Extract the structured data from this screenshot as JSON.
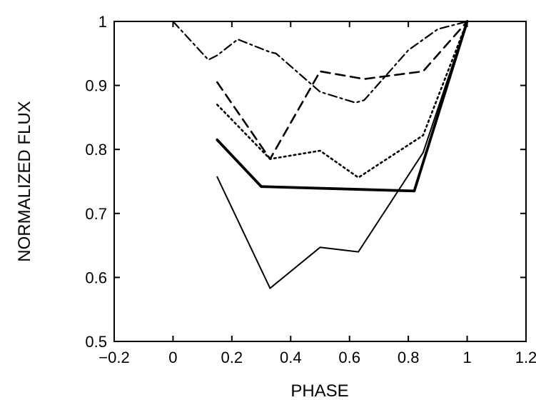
{
  "chart_data": {
    "type": "line",
    "title": "",
    "xlabel": "PHASE",
    "ylabel": "NORMALIZED FLUX",
    "xlim": [
      -0.2,
      1.2
    ],
    "ylim": [
      0.5,
      1.0
    ],
    "xticks": [
      -0.2,
      0,
      0.2,
      0.4,
      0.6,
      0.8,
      1,
      1.2
    ],
    "xtick_labels": [
      "−0.2",
      "0",
      "0.2",
      "0.4",
      "0.6",
      "0.8",
      "1",
      "1.2"
    ],
    "yticks": [
      0.5,
      0.6,
      0.7,
      0.8,
      0.9,
      1.0
    ],
    "ytick_labels": [
      "0.5",
      "0.6",
      "0.7",
      "0.8",
      "0.9",
      "1"
    ],
    "grid": false,
    "series": [
      {
        "style": "dashdot",
        "color": "#000000",
        "x": [
          0.0,
          0.12,
          0.15,
          0.22,
          0.33,
          0.35,
          0.5,
          0.62,
          0.65,
          0.8,
          0.9,
          1.0
        ],
        "y": [
          1.0,
          0.94,
          0.947,
          0.972,
          0.952,
          0.95,
          0.89,
          0.873,
          0.877,
          0.955,
          0.988,
          1.0
        ]
      },
      {
        "style": "dashed",
        "color": "#000000",
        "x": [
          0.15,
          0.33,
          0.5,
          0.65,
          0.85,
          1.0
        ],
        "y": [
          0.905,
          0.785,
          0.922,
          0.91,
          0.922,
          1.0
        ]
      },
      {
        "style": "dotted",
        "color": "#000000",
        "x": [
          0.15,
          0.33,
          0.5,
          0.63,
          0.85,
          1.0
        ],
        "y": [
          0.87,
          0.785,
          0.798,
          0.756,
          0.822,
          1.0
        ]
      },
      {
        "style": "solid-thick",
        "color": "#000000",
        "x": [
          0.15,
          0.3,
          0.82,
          1.0
        ],
        "y": [
          0.815,
          0.742,
          0.735,
          1.0
        ]
      },
      {
        "style": "solid-thin",
        "color": "#000000",
        "x": [
          0.15,
          0.33,
          0.5,
          0.63,
          0.85,
          1.0
        ],
        "y": [
          0.757,
          0.583,
          0.647,
          0.64,
          0.795,
          1.0
        ]
      }
    ]
  }
}
